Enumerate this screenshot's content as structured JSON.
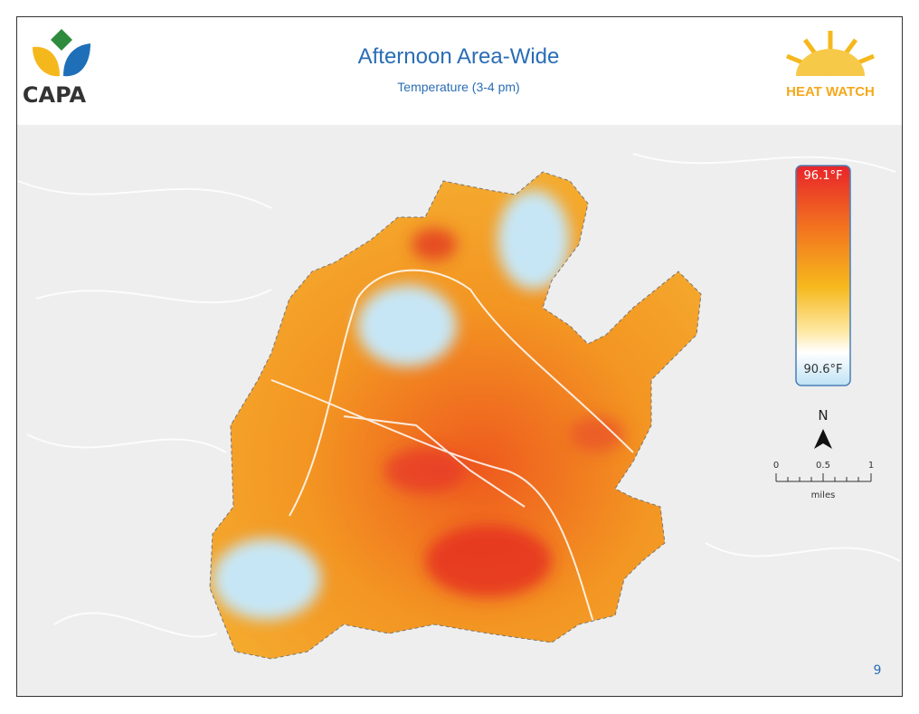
{
  "header": {
    "logo": "CAPA",
    "title": "Afternoon Area-Wide",
    "subtitle": "Temperature (3-4 pm)",
    "badge": "HEAT WATCH"
  },
  "legend": {
    "max": "96.1°F",
    "min": "90.6°F"
  },
  "north": "N",
  "scale": {
    "ticks": [
      "0",
      "0.5",
      "1"
    ],
    "unit": "miles"
  },
  "page_number": "9"
}
